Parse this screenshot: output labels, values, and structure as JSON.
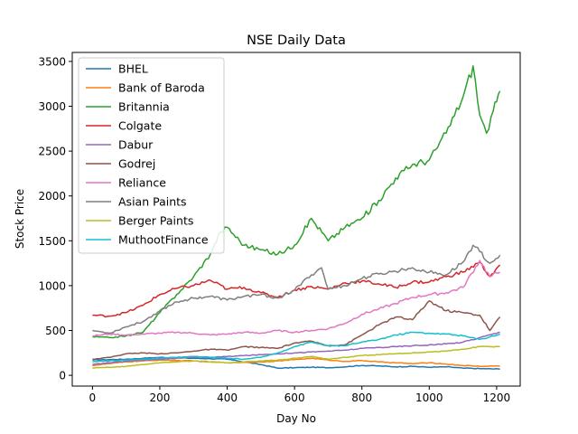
{
  "chart_data": {
    "type": "line",
    "title": "NSE Daily Data",
    "xlabel": "Day No",
    "ylabel": "Stock Price",
    "xlim": [
      -60,
      1270
    ],
    "ylim": [
      -120,
      3600
    ],
    "xticks": [
      0,
      200,
      400,
      600,
      800,
      1000,
      1200
    ],
    "yticks": [
      0,
      500,
      1000,
      1500,
      2000,
      2500,
      3000,
      3500
    ],
    "grid": false,
    "legend_position": "top-left",
    "series": [
      {
        "name": "BHEL",
        "color": "#1f77b4",
        "x": [
          0,
          50,
          100,
          150,
          200,
          250,
          300,
          350,
          400,
          450,
          500,
          550,
          600,
          650,
          700,
          750,
          800,
          850,
          900,
          950,
          1000,
          1050,
          1100,
          1150,
          1210
        ],
        "y": [
          170,
          175,
          180,
          190,
          200,
          195,
          190,
          185,
          180,
          150,
          120,
          80,
          85,
          90,
          85,
          95,
          110,
          105,
          95,
          100,
          90,
          95,
          80,
          75,
          70
        ]
      },
      {
        "name": "Bank of Baroda",
        "color": "#ff7f0e",
        "x": [
          0,
          50,
          100,
          150,
          200,
          250,
          300,
          350,
          400,
          450,
          500,
          550,
          600,
          650,
          700,
          750,
          800,
          850,
          900,
          950,
          1000,
          1050,
          1100,
          1150,
          1210
        ],
        "y": [
          110,
          130,
          150,
          160,
          170,
          165,
          160,
          150,
          140,
          145,
          150,
          160,
          175,
          190,
          170,
          155,
          165,
          150,
          140,
          130,
          140,
          125,
          110,
          100,
          105
        ]
      },
      {
        "name": "Britannia",
        "color": "#2ca02c",
        "x": [
          0,
          50,
          100,
          150,
          200,
          250,
          300,
          350,
          380,
          400,
          450,
          500,
          550,
          600,
          650,
          700,
          750,
          800,
          850,
          900,
          950,
          1000,
          1050,
          1100,
          1130,
          1150,
          1170,
          1190,
          1200,
          1210
        ],
        "y": [
          430,
          420,
          440,
          480,
          700,
          900,
          1100,
          1350,
          1600,
          1650,
          1450,
          1400,
          1350,
          1450,
          1750,
          1500,
          1650,
          1750,
          1950,
          2200,
          2350,
          2400,
          2700,
          3100,
          3450,
          2900,
          2700,
          2950,
          3050,
          3170
        ]
      },
      {
        "name": "Colgate",
        "color": "#d62728",
        "x": [
          0,
          50,
          100,
          150,
          200,
          250,
          300,
          350,
          400,
          450,
          500,
          550,
          600,
          650,
          700,
          750,
          800,
          850,
          900,
          950,
          1000,
          1050,
          1100,
          1150,
          1180,
          1210
        ],
        "y": [
          670,
          660,
          700,
          780,
          900,
          970,
          1000,
          1060,
          960,
          980,
          920,
          870,
          950,
          990,
          960,
          1030,
          1050,
          1020,
          980,
          1040,
          1040,
          1100,
          1150,
          1260,
          1100,
          1230
        ]
      },
      {
        "name": "Dabur",
        "color": "#9467bd",
        "x": [
          0,
          50,
          100,
          150,
          200,
          250,
          300,
          350,
          400,
          450,
          500,
          550,
          600,
          650,
          700,
          750,
          800,
          850,
          900,
          950,
          1000,
          1050,
          1100,
          1150,
          1210
        ],
        "y": [
          120,
          140,
          160,
          170,
          180,
          190,
          200,
          200,
          210,
          220,
          230,
          240,
          250,
          260,
          270,
          280,
          300,
          310,
          320,
          330,
          340,
          350,
          370,
          420,
          480
        ]
      },
      {
        "name": "Godrej",
        "color": "#8c564b",
        "x": [
          0,
          50,
          100,
          150,
          200,
          250,
          300,
          350,
          400,
          450,
          500,
          550,
          600,
          650,
          700,
          750,
          800,
          850,
          900,
          950,
          1000,
          1050,
          1100,
          1150,
          1180,
          1210
        ],
        "y": [
          180,
          200,
          240,
          250,
          240,
          250,
          270,
          290,
          280,
          320,
          310,
          300,
          360,
          380,
          330,
          340,
          450,
          560,
          650,
          620,
          830,
          720,
          700,
          670,
          500,
          650
        ]
      },
      {
        "name": "Reliance",
        "color": "#e377c2",
        "x": [
          0,
          50,
          100,
          150,
          200,
          250,
          300,
          350,
          400,
          450,
          500,
          550,
          600,
          650,
          700,
          750,
          800,
          850,
          900,
          950,
          1000,
          1050,
          1100,
          1150,
          1180,
          1210
        ],
        "y": [
          440,
          460,
          450,
          460,
          470,
          480,
          470,
          450,
          460,
          480,
          470,
          500,
          480,
          500,
          520,
          580,
          680,
          740,
          800,
          870,
          900,
          920,
          980,
          1280,
          1100,
          1150
        ]
      },
      {
        "name": "Asian Paints",
        "color": "#7f7f7f",
        "x": [
          0,
          50,
          100,
          150,
          200,
          250,
          300,
          350,
          400,
          450,
          500,
          550,
          600,
          650,
          680,
          700,
          750,
          800,
          850,
          900,
          950,
          1000,
          1050,
          1100,
          1130,
          1150,
          1180,
          1210
        ],
        "y": [
          500,
          470,
          540,
          600,
          720,
          820,
          860,
          880,
          840,
          880,
          900,
          860,
          950,
          1120,
          1200,
          960,
          1000,
          1080,
          1130,
          1160,
          1200,
          1150,
          1120,
          1260,
          1450,
          1380,
          1250,
          1340
        ]
      },
      {
        "name": "Berger Paints",
        "color": "#bcbd22",
        "x": [
          0,
          50,
          100,
          150,
          200,
          250,
          300,
          350,
          400,
          450,
          500,
          550,
          600,
          650,
          700,
          750,
          800,
          850,
          900,
          950,
          1000,
          1050,
          1100,
          1150,
          1210
        ],
        "y": [
          80,
          90,
          100,
          120,
          140,
          150,
          160,
          150,
          140,
          150,
          160,
          170,
          190,
          210,
          180,
          200,
          220,
          230,
          240,
          250,
          260,
          270,
          290,
          320,
          320
        ]
      },
      {
        "name": "MuthootFinance",
        "color": "#17becf",
        "x": [
          0,
          50,
          100,
          150,
          200,
          250,
          300,
          350,
          400,
          450,
          500,
          550,
          600,
          650,
          700,
          750,
          800,
          850,
          900,
          950,
          1000,
          1050,
          1100,
          1150,
          1210
        ],
        "y": [
          150,
          160,
          170,
          180,
          190,
          200,
          210,
          200,
          190,
          180,
          200,
          250,
          320,
          370,
          330,
          330,
          370,
          400,
          450,
          480,
          470,
          460,
          440,
          400,
          460
        ]
      }
    ]
  }
}
